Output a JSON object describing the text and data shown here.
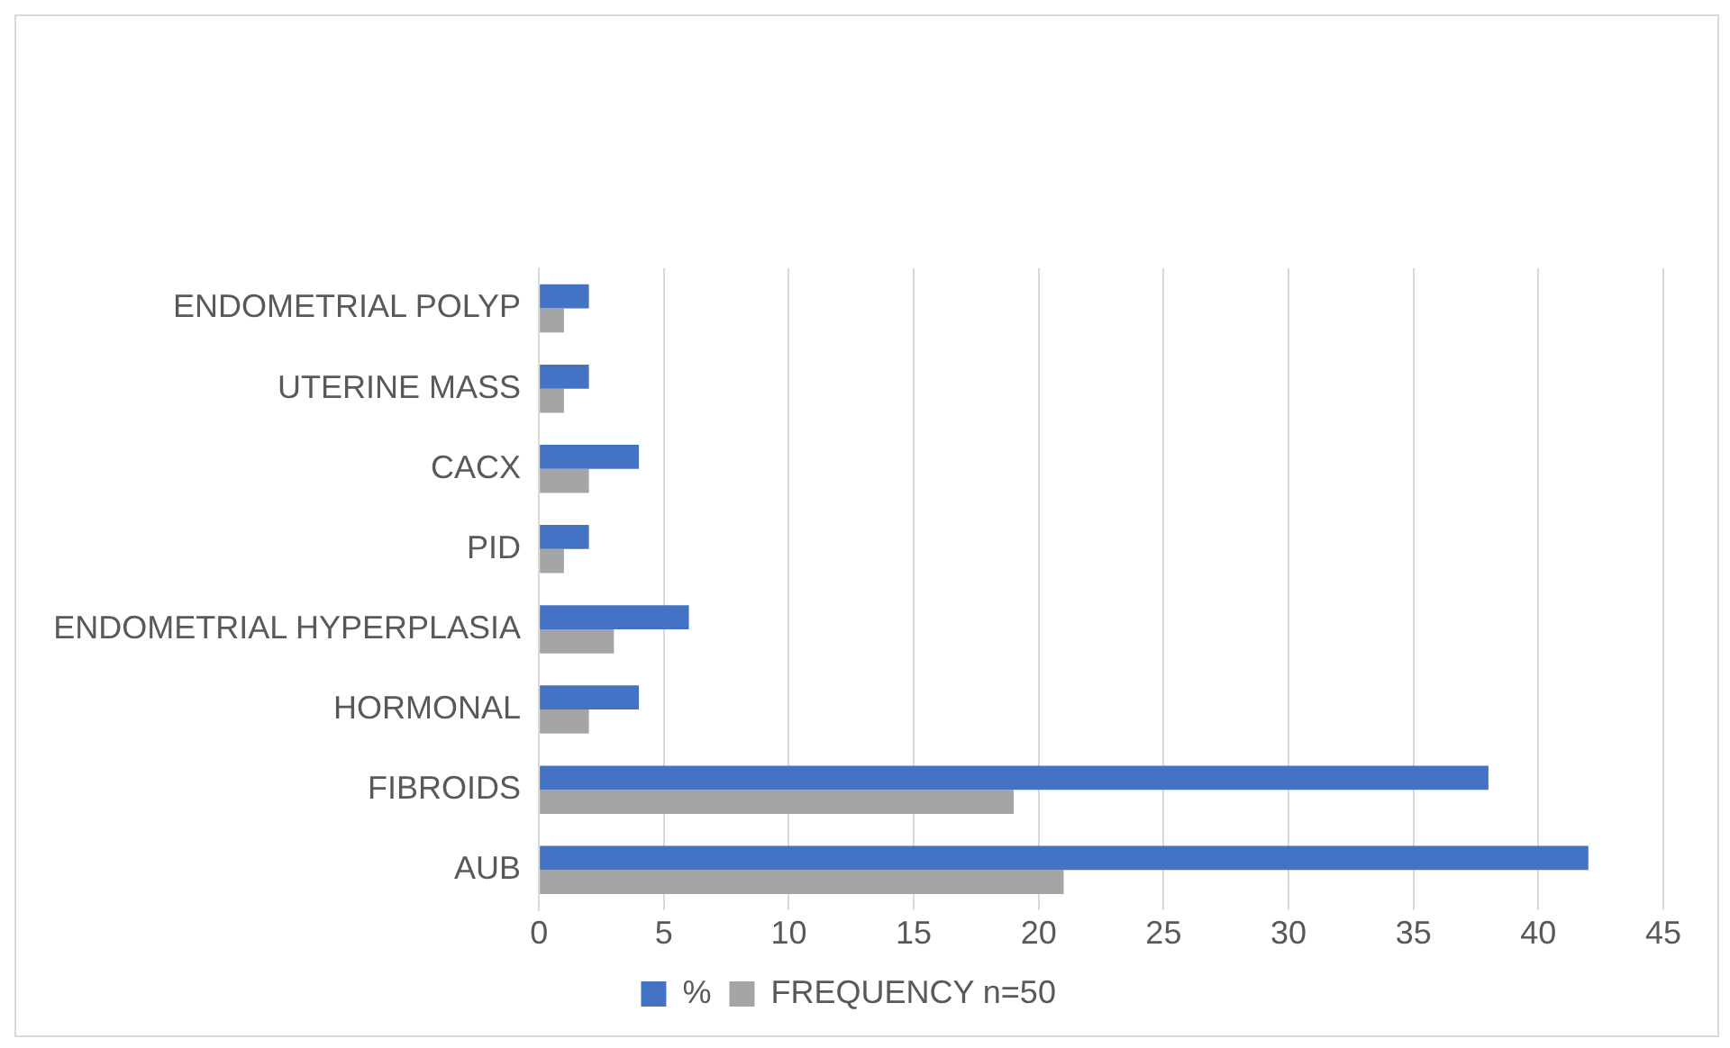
{
  "chart_data": {
    "type": "bar",
    "orientation": "horizontal",
    "categories": [
      "ENDOMETRIAL POLYP",
      "UTERINE MASS",
      "CACX",
      "PID",
      "ENDOMETRIAL HYPERPLASIA",
      "HORMONAL",
      "FIBROIDS",
      "AUB"
    ],
    "series": [
      {
        "name": "%",
        "color": "#4472c4",
        "values": [
          2,
          2,
          4,
          2,
          6,
          4,
          38,
          42
        ]
      },
      {
        "name": "FREQUENCY n=50",
        "color": "#a5a5a5",
        "values": [
          1,
          1,
          2,
          1,
          3,
          2,
          19,
          21
        ]
      }
    ],
    "xlim": [
      0,
      45
    ],
    "xticks": [
      0,
      5,
      10,
      15,
      20,
      25,
      30,
      35,
      40,
      45
    ],
    "grid": "x",
    "legend": "bottom"
  }
}
